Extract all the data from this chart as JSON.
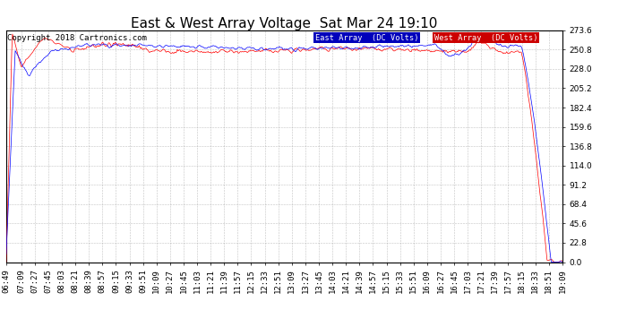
{
  "title": "East & West Array Voltage  Sat Mar 24 19:10",
  "copyright": "Copyright 2018 Cartronics.com",
  "legend_east": "East Array  (DC Volts)",
  "legend_west": "West Array  (DC Volts)",
  "east_color": "#0000ff",
  "west_color": "#ff0000",
  "legend_east_bg": "#0000bb",
  "legend_west_bg": "#cc0000",
  "background_color": "#ffffff",
  "plot_bg_color": "#ffffff",
  "grid_color": "#999999",
  "yticks": [
    0.0,
    22.8,
    45.6,
    68.4,
    91.2,
    114.0,
    136.8,
    159.6,
    182.4,
    205.2,
    228.0,
    250.8,
    273.6
  ],
  "ymin": 0.0,
  "ymax": 273.6,
  "title_fontsize": 11,
  "axis_fontsize": 6.5,
  "copyright_fontsize": 6.5,
  "xtick_labels": [
    "06:49",
    "07:09",
    "07:27",
    "07:45",
    "08:03",
    "08:21",
    "08:39",
    "08:57",
    "09:15",
    "09:33",
    "09:51",
    "10:09",
    "10:27",
    "10:45",
    "11:03",
    "11:21",
    "11:39",
    "11:57",
    "12:15",
    "12:33",
    "12:51",
    "13:09",
    "13:27",
    "13:45",
    "14:03",
    "14:21",
    "14:39",
    "14:57",
    "15:15",
    "15:33",
    "15:51",
    "16:09",
    "16:27",
    "16:45",
    "17:03",
    "17:21",
    "17:39",
    "17:57",
    "18:15",
    "18:33",
    "18:51",
    "19:09"
  ]
}
